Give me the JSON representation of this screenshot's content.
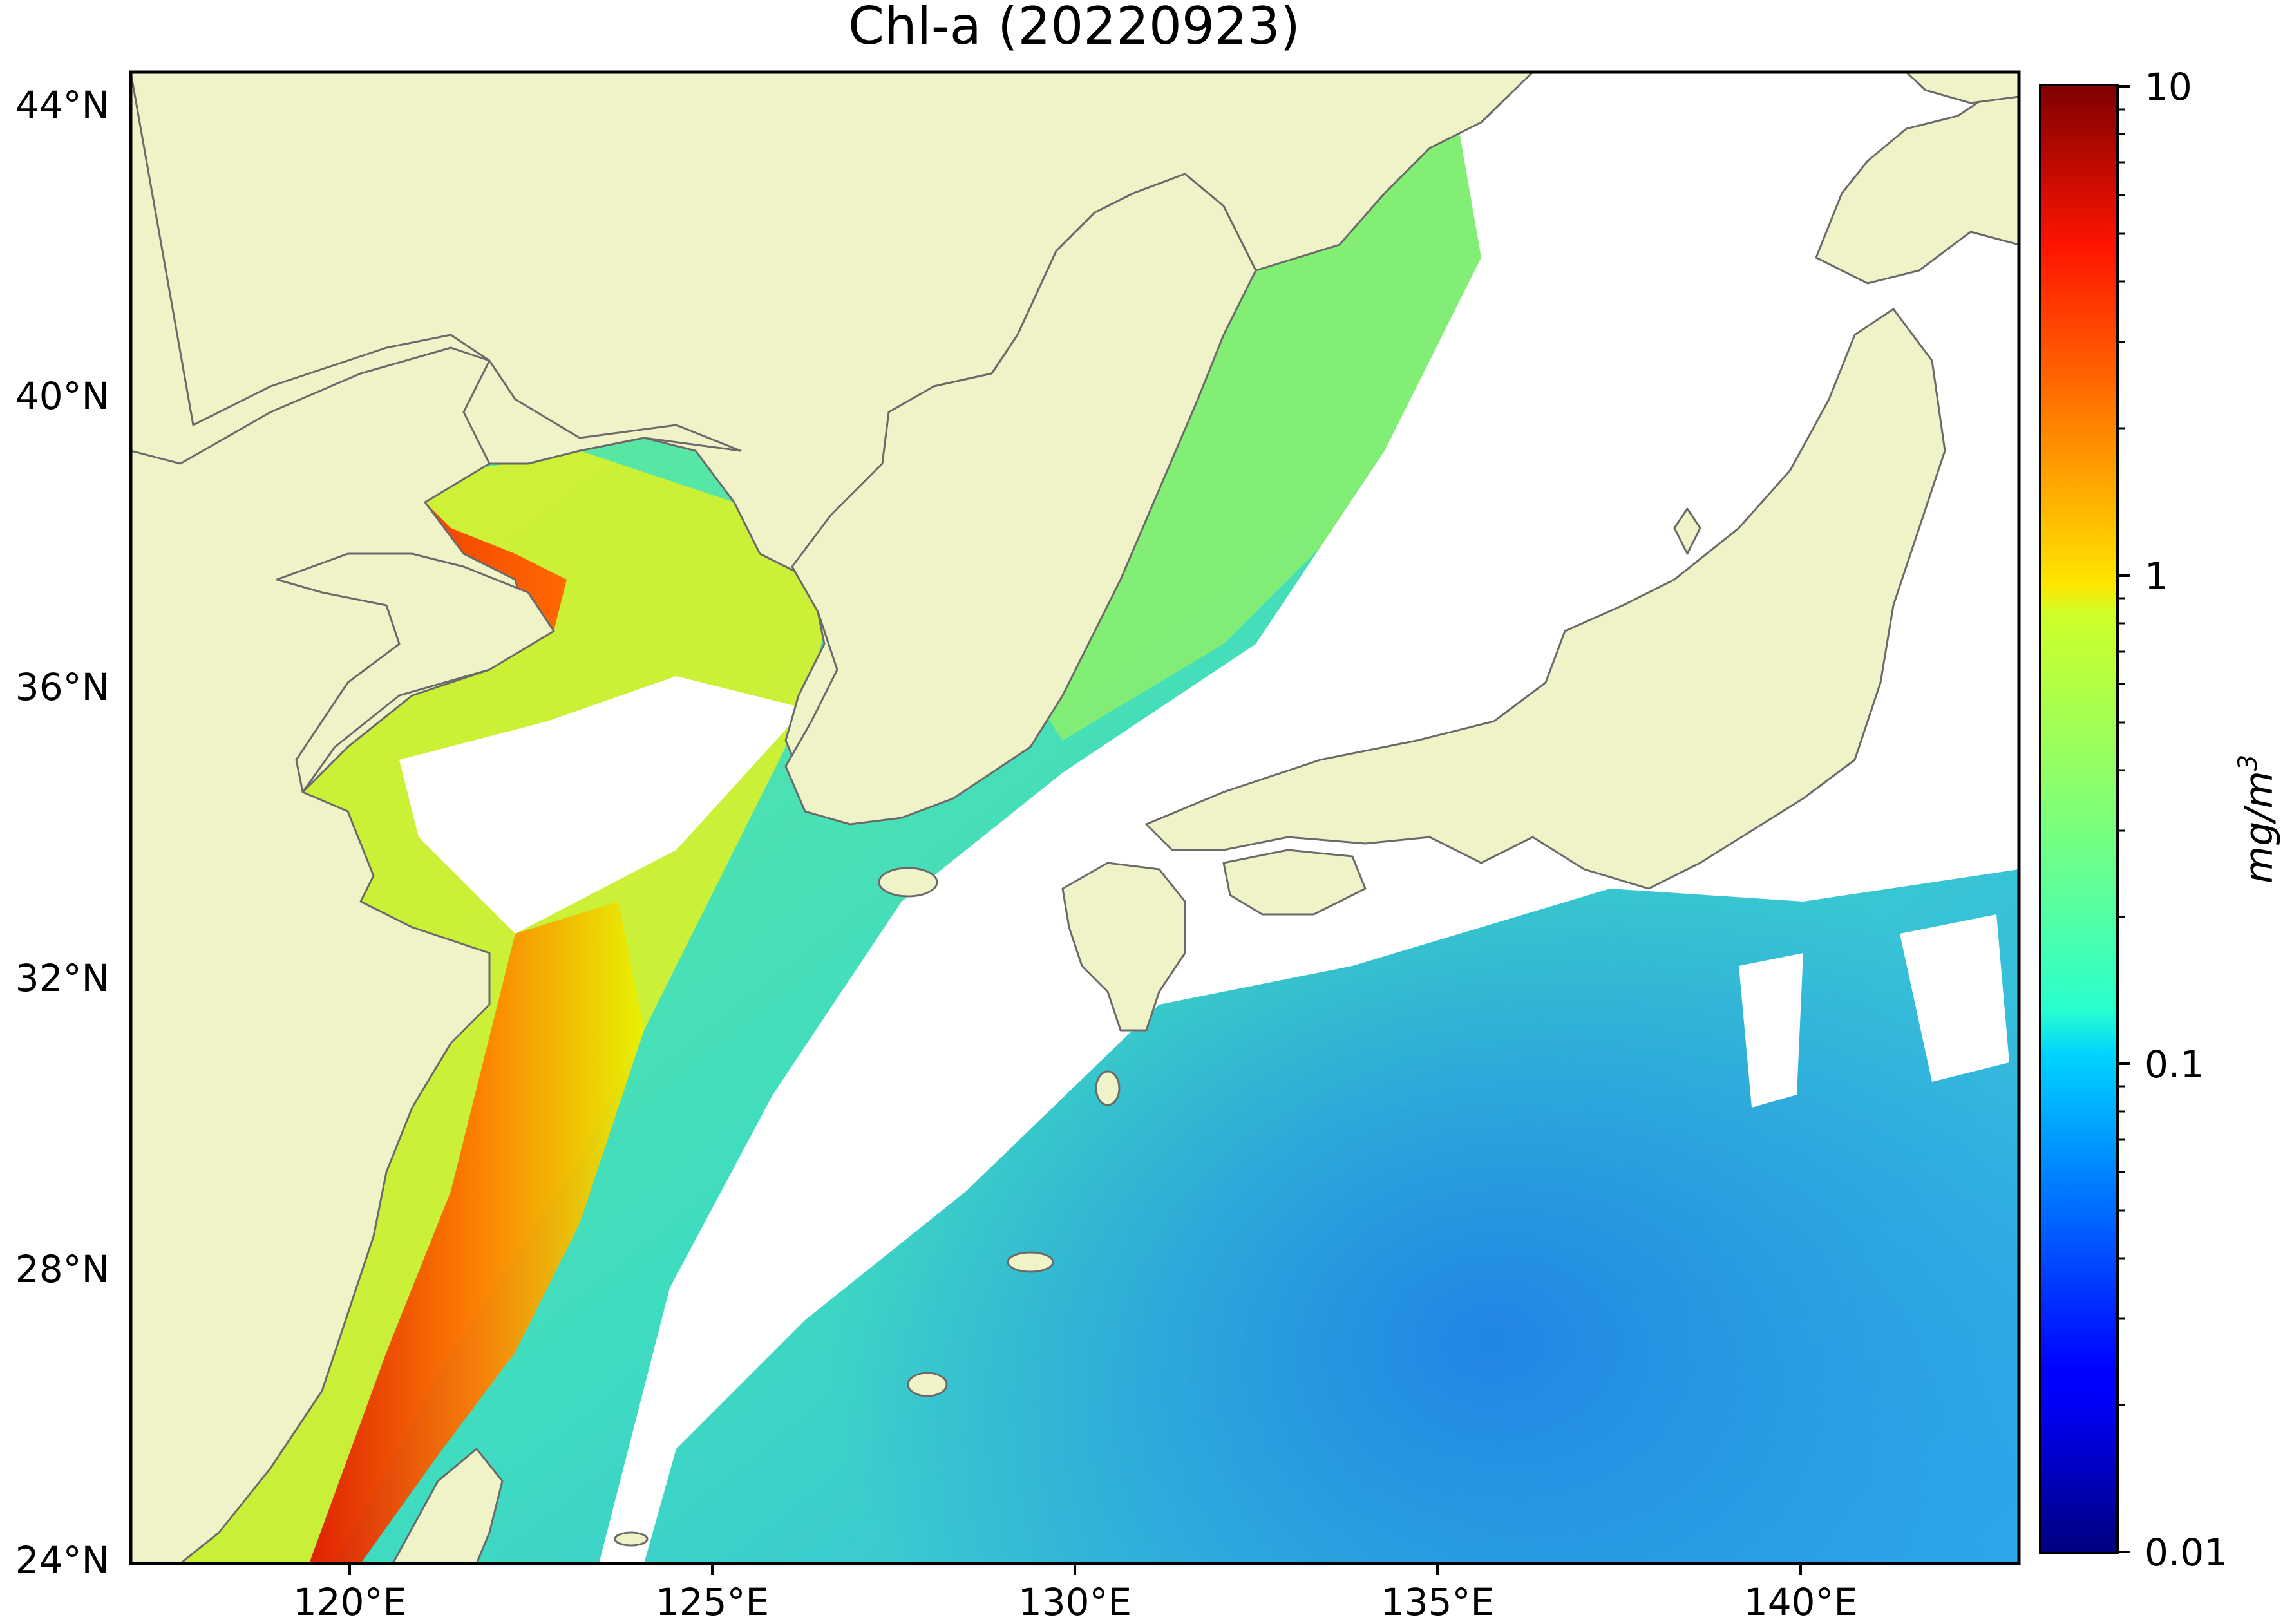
{
  "title": "Chl-a (20220923)",
  "colors": {
    "land": "#f0f3c8",
    "cloud": "#ffffff",
    "coastline": "#6a6a6a",
    "frame": "#000000"
  },
  "axes": {
    "lon_range": [
      117,
      143
    ],
    "lat_range": [
      24,
      44.5
    ],
    "x_ticks": [
      "120°E",
      "125°E",
      "130°E",
      "135°E",
      "140°E"
    ],
    "y_ticks": [
      "24°N",
      "28°N",
      "32°N",
      "36°N",
      "40°N",
      "44°N"
    ]
  },
  "colorbar": {
    "label": "mg/m",
    "label_sup": "3",
    "scale": "log",
    "range": [
      0.01,
      10
    ],
    "colormap": "jet",
    "tick_labels": [
      "10",
      "1",
      "0.1",
      "0.01"
    ]
  }
}
